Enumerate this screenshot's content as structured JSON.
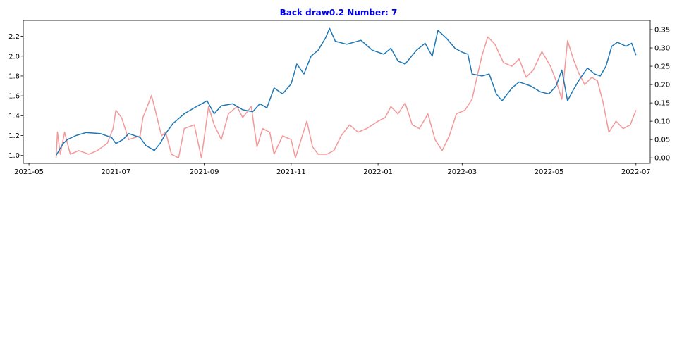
{
  "chart_data": {
    "type": "line",
    "title": "Back draw0.2 Number: 7",
    "title_color": "#0000ee",
    "xlabel": "",
    "ylabel_left": "",
    "ylabel_right": "",
    "grid": false,
    "x_range": [
      "2021-04-27",
      "2022-07-11"
    ],
    "x_ticks": [
      "2021-05",
      "2021-07",
      "2021-09",
      "2021-11",
      "2022-01",
      "2022-03",
      "2022-05",
      "2022-07"
    ],
    "y_left_range": [
      0.92,
      2.36
    ],
    "y_left_ticks": [
      "1.0",
      "1.2",
      "1.4",
      "1.6",
      "1.8",
      "2.0",
      "2.2"
    ],
    "y_right_range": [
      -0.015,
      0.375
    ],
    "y_right_ticks": [
      "0.00",
      "0.05",
      "0.10",
      "0.15",
      "0.20",
      "0.25",
      "0.30",
      "0.35"
    ],
    "series": [
      {
        "axis": "left",
        "color": "#1f77b4",
        "opacity": 1.0,
        "points": [
          [
            "2021-05-20",
            1.0
          ],
          [
            "2021-05-25",
            1.12
          ],
          [
            "2021-05-28",
            1.16
          ],
          [
            "2021-06-03",
            1.2
          ],
          [
            "2021-06-10",
            1.23
          ],
          [
            "2021-06-20",
            1.22
          ],
          [
            "2021-06-28",
            1.18
          ],
          [
            "2021-07-01",
            1.12
          ],
          [
            "2021-07-06",
            1.16
          ],
          [
            "2021-07-10",
            1.22
          ],
          [
            "2021-07-18",
            1.18
          ],
          [
            "2021-07-22",
            1.1
          ],
          [
            "2021-07-28",
            1.05
          ],
          [
            "2021-08-01",
            1.12
          ],
          [
            "2021-08-05",
            1.22
          ],
          [
            "2021-08-10",
            1.32
          ],
          [
            "2021-08-18",
            1.42
          ],
          [
            "2021-08-25",
            1.48
          ],
          [
            "2021-09-03",
            1.55
          ],
          [
            "2021-09-08",
            1.42
          ],
          [
            "2021-09-13",
            1.5
          ],
          [
            "2021-09-21",
            1.52
          ],
          [
            "2021-09-28",
            1.46
          ],
          [
            "2021-10-05",
            1.44
          ],
          [
            "2021-10-10",
            1.52
          ],
          [
            "2021-10-15",
            1.48
          ],
          [
            "2021-10-20",
            1.68
          ],
          [
            "2021-10-26",
            1.62
          ],
          [
            "2021-11-01",
            1.72
          ],
          [
            "2021-11-05",
            1.92
          ],
          [
            "2021-11-10",
            1.82
          ],
          [
            "2021-11-15",
            2.0
          ],
          [
            "2021-11-20",
            2.06
          ],
          [
            "2021-11-25",
            2.18
          ],
          [
            "2021-11-28",
            2.28
          ],
          [
            "2021-12-02",
            2.15
          ],
          [
            "2021-12-10",
            2.12
          ],
          [
            "2021-12-20",
            2.16
          ],
          [
            "2021-12-28",
            2.06
          ],
          [
            "2022-01-05",
            2.02
          ],
          [
            "2022-01-10",
            2.08
          ],
          [
            "2022-01-15",
            1.95
          ],
          [
            "2022-01-20",
            1.92
          ],
          [
            "2022-01-28",
            2.06
          ],
          [
            "2022-02-03",
            2.13
          ],
          [
            "2022-02-08",
            2.0
          ],
          [
            "2022-02-12",
            2.26
          ],
          [
            "2022-02-18",
            2.18
          ],
          [
            "2022-02-24",
            2.08
          ],
          [
            "2022-03-01",
            2.04
          ],
          [
            "2022-03-05",
            2.02
          ],
          [
            "2022-03-08",
            1.82
          ],
          [
            "2022-03-15",
            1.8
          ],
          [
            "2022-03-20",
            1.82
          ],
          [
            "2022-03-25",
            1.62
          ],
          [
            "2022-03-29",
            1.55
          ],
          [
            "2022-04-05",
            1.68
          ],
          [
            "2022-04-10",
            1.74
          ],
          [
            "2022-04-18",
            1.7
          ],
          [
            "2022-04-25",
            1.64
          ],
          [
            "2022-05-01",
            1.62
          ],
          [
            "2022-05-06",
            1.7
          ],
          [
            "2022-05-10",
            1.86
          ],
          [
            "2022-05-14",
            1.55
          ],
          [
            "2022-05-18",
            1.66
          ],
          [
            "2022-05-23",
            1.78
          ],
          [
            "2022-05-28",
            1.88
          ],
          [
            "2022-06-02",
            1.82
          ],
          [
            "2022-06-06",
            1.8
          ],
          [
            "2022-06-10",
            1.9
          ],
          [
            "2022-06-14",
            2.1
          ],
          [
            "2022-06-18",
            2.14
          ],
          [
            "2022-06-24",
            2.1
          ],
          [
            "2022-06-28",
            2.13
          ],
          [
            "2022-07-01",
            2.01
          ]
        ]
      },
      {
        "axis": "right",
        "color": "#f08080",
        "opacity": 0.8,
        "points": [
          [
            "2021-05-20",
            0.0
          ],
          [
            "2021-05-21",
            0.07
          ],
          [
            "2021-05-23",
            0.01
          ],
          [
            "2021-05-26",
            0.07
          ],
          [
            "2021-05-30",
            0.01
          ],
          [
            "2021-06-05",
            0.02
          ],
          [
            "2021-06-12",
            0.01
          ],
          [
            "2021-06-18",
            0.02
          ],
          [
            "2021-06-25",
            0.04
          ],
          [
            "2021-06-29",
            0.08
          ],
          [
            "2021-07-01",
            0.13
          ],
          [
            "2021-07-05",
            0.11
          ],
          [
            "2021-07-10",
            0.05
          ],
          [
            "2021-07-18",
            0.06
          ],
          [
            "2021-07-20",
            0.11
          ],
          [
            "2021-07-24",
            0.15
          ],
          [
            "2021-07-26",
            0.17
          ],
          [
            "2021-07-28",
            0.14
          ],
          [
            "2021-08-02",
            0.06
          ],
          [
            "2021-08-05",
            0.07
          ],
          [
            "2021-08-09",
            0.01
          ],
          [
            "2021-08-14",
            0.0
          ],
          [
            "2021-08-18",
            0.08
          ],
          [
            "2021-08-25",
            0.09
          ],
          [
            "2021-08-30",
            0.0
          ],
          [
            "2021-09-04",
            0.14
          ],
          [
            "2021-09-08",
            0.09
          ],
          [
            "2021-09-13",
            0.05
          ],
          [
            "2021-09-18",
            0.12
          ],
          [
            "2021-09-24",
            0.14
          ],
          [
            "2021-09-28",
            0.11
          ],
          [
            "2021-10-04",
            0.14
          ],
          [
            "2021-10-08",
            0.03
          ],
          [
            "2021-10-12",
            0.08
          ],
          [
            "2021-10-17",
            0.07
          ],
          [
            "2021-10-20",
            0.01
          ],
          [
            "2021-10-26",
            0.06
          ],
          [
            "2021-11-01",
            0.05
          ],
          [
            "2021-11-04",
            0.0
          ],
          [
            "2021-11-08",
            0.05
          ],
          [
            "2021-11-12",
            0.1
          ],
          [
            "2021-11-16",
            0.03
          ],
          [
            "2021-11-20",
            0.01
          ],
          [
            "2021-11-26",
            0.01
          ],
          [
            "2021-12-01",
            0.02
          ],
          [
            "2021-12-06",
            0.06
          ],
          [
            "2021-12-12",
            0.09
          ],
          [
            "2021-12-18",
            0.07
          ],
          [
            "2021-12-24",
            0.08
          ],
          [
            "2022-01-01",
            0.1
          ],
          [
            "2022-01-06",
            0.11
          ],
          [
            "2022-01-10",
            0.14
          ],
          [
            "2022-01-15",
            0.12
          ],
          [
            "2022-01-20",
            0.15
          ],
          [
            "2022-01-25",
            0.09
          ],
          [
            "2022-01-30",
            0.08
          ],
          [
            "2022-02-05",
            0.12
          ],
          [
            "2022-02-10",
            0.05
          ],
          [
            "2022-02-15",
            0.02
          ],
          [
            "2022-02-20",
            0.06
          ],
          [
            "2022-02-25",
            0.12
          ],
          [
            "2022-03-03",
            0.13
          ],
          [
            "2022-03-08",
            0.16
          ],
          [
            "2022-03-12",
            0.23
          ],
          [
            "2022-03-15",
            0.28
          ],
          [
            "2022-03-19",
            0.33
          ],
          [
            "2022-03-24",
            0.31
          ],
          [
            "2022-03-30",
            0.26
          ],
          [
            "2022-04-05",
            0.25
          ],
          [
            "2022-04-10",
            0.27
          ],
          [
            "2022-04-15",
            0.22
          ],
          [
            "2022-04-20",
            0.24
          ],
          [
            "2022-04-26",
            0.29
          ],
          [
            "2022-05-02",
            0.25
          ],
          [
            "2022-05-06",
            0.21
          ],
          [
            "2022-05-10",
            0.16
          ],
          [
            "2022-05-14",
            0.32
          ],
          [
            "2022-05-18",
            0.27
          ],
          [
            "2022-05-22",
            0.23
          ],
          [
            "2022-05-26",
            0.2
          ],
          [
            "2022-05-31",
            0.22
          ],
          [
            "2022-06-04",
            0.21
          ],
          [
            "2022-06-08",
            0.15
          ],
          [
            "2022-06-12",
            0.07
          ],
          [
            "2022-06-17",
            0.1
          ],
          [
            "2022-06-22",
            0.08
          ],
          [
            "2022-06-27",
            0.09
          ],
          [
            "2022-07-01",
            0.13
          ]
        ]
      }
    ]
  }
}
